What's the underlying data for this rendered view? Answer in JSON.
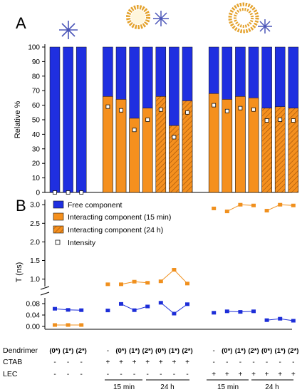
{
  "panels": {
    "a": "A",
    "b": "B"
  },
  "colors": {
    "free": "#1f2fe0",
    "interacting": "#f5901e",
    "intensity_marker": "#ffffff",
    "series_free": "#1d2ed8",
    "series_interacting": "#f0901e",
    "dendrimer_icon": "#4a55b8",
    "lipid_head": "#e4a22d"
  },
  "legend": [
    {
      "key": "free",
      "label": "Free component"
    },
    {
      "key": "interacting15",
      "label": "Interacting component  (15 min)"
    },
    {
      "key": "interacting24",
      "label": "Interacting component  (24 h)"
    },
    {
      "key": "intensity",
      "label": "Intensity"
    }
  ],
  "chart_data": [
    {
      "type": "bar",
      "stacked": true,
      "ylabel": "Relative %",
      "ylim": [
        0,
        100
      ],
      "yticks": [
        0,
        10,
        20,
        30,
        40,
        50,
        60,
        70,
        80,
        90,
        100
      ],
      "groups": [
        {
          "free": 100,
          "interacting": 0,
          "hatched": false,
          "intensity": 0
        },
        {
          "free": 100,
          "interacting": 0,
          "hatched": false,
          "intensity": 0
        },
        {
          "free": 100,
          "interacting": 0,
          "hatched": false,
          "intensity": 0
        },
        {
          "gap": true
        },
        {
          "free": 34,
          "interacting": 66,
          "hatched": false,
          "intensity": 59
        },
        {
          "free": 36,
          "interacting": 64,
          "hatched": false,
          "intensity": 56.5
        },
        {
          "free": 49,
          "interacting": 51,
          "hatched": false,
          "intensity": 43
        },
        {
          "free": 42,
          "interacting": 58,
          "hatched": false,
          "intensity": 50
        },
        {
          "free": 34,
          "interacting": 66,
          "hatched": true,
          "intensity": 57
        },
        {
          "free": 54,
          "interacting": 46,
          "hatched": true,
          "intensity": 38
        },
        {
          "free": 37,
          "interacting": 63,
          "hatched": true,
          "intensity": 55
        },
        {
          "gap": true
        },
        {
          "free": 32,
          "interacting": 68,
          "hatched": false,
          "intensity": 60
        },
        {
          "free": 36,
          "interacting": 64,
          "hatched": false,
          "intensity": 56
        },
        {
          "free": 34,
          "interacting": 66,
          "hatched": false,
          "intensity": 58
        },
        {
          "free": 35,
          "interacting": 65,
          "hatched": false,
          "intensity": 57
        },
        {
          "free": 42,
          "interacting": 58,
          "hatched": true,
          "intensity": 49.5
        },
        {
          "free": 41,
          "interacting": 59,
          "hatched": true,
          "intensity": 50
        },
        {
          "free": 42,
          "interacting": 58,
          "hatched": true,
          "intensity": 49.5
        }
      ]
    },
    {
      "type": "scatter",
      "ylabel": "T (ns)",
      "broken_axis": true,
      "ylim_lower": [
        0,
        0.1
      ],
      "yticks_lower": [
        "0.00",
        "0.04",
        "0.08"
      ],
      "ylim_upper": [
        0.8,
        3.1
      ],
      "yticks_upper": [
        "1.0",
        "1.5",
        "2.0",
        "2.5",
        "3.0"
      ],
      "series": [
        {
          "name": "Free component",
          "color_key": "free",
          "values": [
            0.062,
            0.058,
            0.057,
            null,
            0.056,
            0.079,
            0.057,
            0.07,
            0.083,
            0.045,
            0.078,
            null,
            0.048,
            0.053,
            0.051,
            0.053,
            0.022,
            0.027,
            0.02
          ]
        },
        {
          "name": "Interacting component",
          "color_key": "interacting",
          "values": [
            0.005,
            0.005,
            0.005,
            null,
            0.86,
            0.86,
            0.93,
            0.9,
            0.94,
            1.25,
            0.88,
            null,
            2.9,
            2.82,
            3.0,
            2.98,
            2.84,
            3.0,
            2.98
          ]
        }
      ]
    }
  ],
  "conditions": {
    "dendrimer_label": "Dendrimer",
    "ctab_label": "CTAB",
    "lec_label": "LEC",
    "dendrimer": [
      "(0*)",
      "(1*)",
      "(2*)",
      "",
      "-",
      "(0*)",
      "(1*)",
      "(2*)",
      "(0*)",
      "(1*)",
      "(2*)",
      "",
      "-",
      "(0*)",
      "(1*)",
      "(2*)",
      "(0*)",
      "(1*)",
      "(2*)"
    ],
    "ctab": [
      "-",
      "-",
      "-",
      "",
      "+",
      "+",
      "+",
      "+",
      "+",
      "+",
      "+",
      "",
      "-",
      "-",
      "-",
      "-",
      "-",
      "-",
      "-"
    ],
    "lec": [
      "-",
      "-",
      "-",
      "",
      "-",
      "-",
      "-",
      "-",
      "-",
      "-",
      "-",
      "",
      "+",
      "+",
      "+",
      "+",
      "+",
      "+",
      "+"
    ],
    "time_labels": [
      "15 min",
      "24 h",
      "15 min",
      "24 h"
    ]
  }
}
